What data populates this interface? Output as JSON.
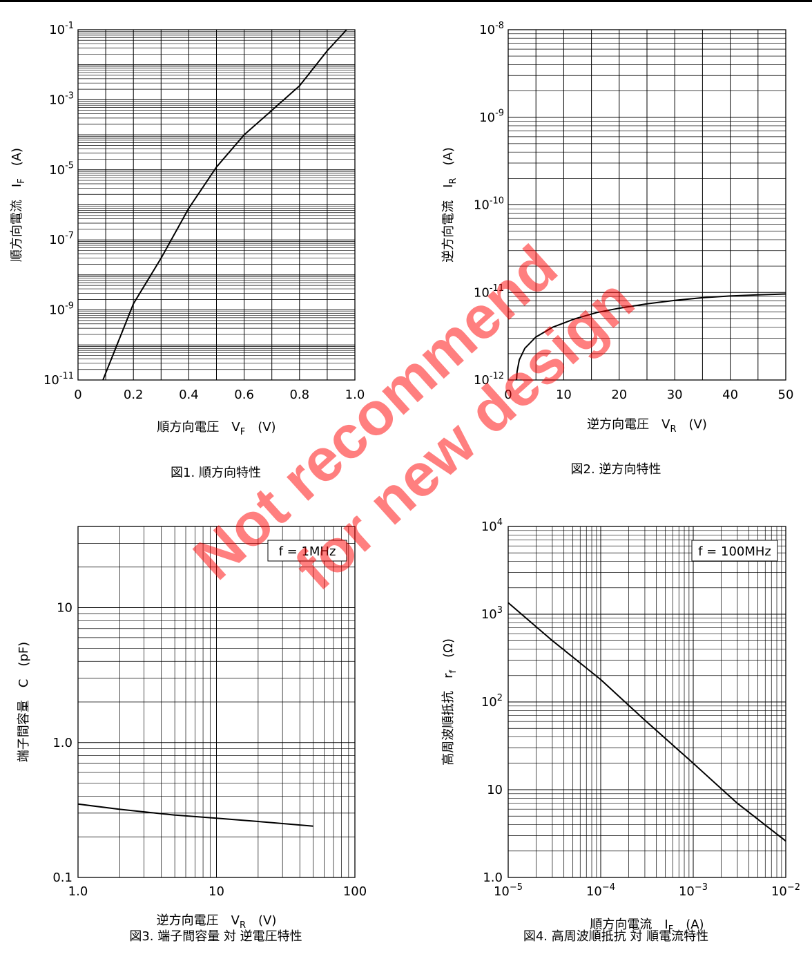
{
  "watermark": {
    "line1": "Not recommend",
    "line2": "for new design",
    "color": "#ff0000"
  },
  "chart_data": [
    {
      "type": "line",
      "caption": "図1. 順方向特性",
      "xlabel": "順方向電圧",
      "xlabel_symbol": "V",
      "xlabel_sub": "F",
      "xlabel_unit": "(V)",
      "ylabel": "順方向電流",
      "ylabel_symbol": "I",
      "ylabel_sub": "F",
      "ylabel_unit": "(A)",
      "x_scale": "linear",
      "y_scale": "log",
      "xlim": [
        0,
        1.0
      ],
      "ylim": [
        1e-11,
        0.1
      ],
      "x_ticks": [
        0,
        0.2,
        0.4,
        0.6,
        0.8,
        1.0
      ],
      "x_tick_labels": [
        "0",
        "0.2",
        "0.4",
        "0.6",
        "0.8",
        "1.0"
      ],
      "y_tick_labels": [
        {
          "value": 1e-11,
          "base": "10",
          "exp": "-11"
        },
        {
          "value": 1e-09,
          "base": "10",
          "exp": "-9"
        },
        {
          "value": 1e-07,
          "base": "10",
          "exp": "-7"
        },
        {
          "value": 1e-05,
          "base": "10",
          "exp": "-5"
        },
        {
          "value": 0.001,
          "base": "10",
          "exp": "-3"
        },
        {
          "value": 0.1,
          "base": "10",
          "exp": "-1"
        }
      ],
      "grid": true,
      "series": [
        {
          "x": [
            0.09,
            0.2,
            0.3,
            0.4,
            0.5,
            0.6,
            0.7,
            0.8,
            0.9,
            0.97
          ],
          "y": [
            1e-11,
            1.5e-09,
            3e-08,
            8e-07,
            1.2e-05,
            0.0001,
            0.0005,
            0.0025,
            0.025,
            0.1
          ]
        }
      ]
    },
    {
      "type": "line",
      "caption": "図2. 逆方向特性",
      "xlabel": "逆方向電圧",
      "xlabel_symbol": "V",
      "xlabel_sub": "R",
      "xlabel_unit": "(V)",
      "ylabel": "逆方向電流",
      "ylabel_symbol": "I",
      "ylabel_sub": "R",
      "ylabel_unit": "(A)",
      "x_scale": "linear",
      "y_scale": "log",
      "xlim": [
        0,
        50
      ],
      "ylim": [
        1e-12,
        1e-08
      ],
      "x_ticks": [
        0,
        10,
        20,
        30,
        40,
        50
      ],
      "x_tick_labels": [
        "0",
        "10",
        "20",
        "30",
        "40",
        "50"
      ],
      "y_tick_labels": [
        {
          "value": 1e-12,
          "base": "10",
          "exp": "-12"
        },
        {
          "value": 1e-11,
          "base": "10",
          "exp": "-11"
        },
        {
          "value": 1e-10,
          "base": "10",
          "exp": "-10"
        },
        {
          "value": 1e-09,
          "base": "10",
          "exp": "-9"
        },
        {
          "value": 1e-08,
          "base": "10",
          "exp": "-8"
        }
      ],
      "grid": true,
      "series": [
        {
          "x": [
            1.5,
            1.6,
            2,
            3,
            5,
            8,
            12,
            16,
            20,
            25,
            30,
            35,
            40,
            45,
            50
          ],
          "y": [
            1e-12,
            1.25e-12,
            1.7e-12,
            2.3e-12,
            3.1e-12,
            4e-12,
            5e-12,
            5.9e-12,
            6.6e-12,
            7.4e-12,
            8.1e-12,
            8.7e-12,
            9.1e-12,
            9.4e-12,
            9.6e-12
          ]
        }
      ]
    },
    {
      "type": "line",
      "caption": "図3. 端子間容量 対 逆電圧特性",
      "annotation": "f = 1MHz",
      "xlabel": "逆方向電圧",
      "xlabel_symbol": "V",
      "xlabel_sub": "R",
      "xlabel_unit": "(V)",
      "ylabel": "端子間容量",
      "ylabel_symbol": "C",
      "ylabel_sub": "",
      "ylabel_unit": "(pF)",
      "x_scale": "log",
      "y_scale": "log",
      "xlim": [
        1,
        100
      ],
      "ylim": [
        0.1,
        40
      ],
      "x_tick_labels": [
        {
          "value": 1,
          "label": "1.0"
        },
        {
          "value": 10,
          "label": "10"
        },
        {
          "value": 100,
          "label": "100"
        }
      ],
      "y_tick_labels": [
        {
          "value": 0.1,
          "label": "0.1"
        },
        {
          "value": 1,
          "label": "1.0"
        },
        {
          "value": 10,
          "label": "10"
        }
      ],
      "grid": true,
      "series": [
        {
          "x": [
            1,
            2,
            5,
            10,
            20,
            50
          ],
          "y": [
            0.35,
            0.32,
            0.29,
            0.275,
            0.26,
            0.24
          ]
        }
      ]
    },
    {
      "type": "line",
      "caption": "図4. 高周波順抵抗 対 順電流特性",
      "annotation": "f = 100MHz",
      "xlabel": "順方向電流",
      "xlabel_symbol": "I",
      "xlabel_sub": "F",
      "xlabel_unit": "(A)",
      "ylabel": "高周波順抵抗",
      "ylabel_symbol": "r",
      "ylabel_sub": "f",
      "ylabel_unit": "(Ω)",
      "x_scale": "log",
      "y_scale": "log",
      "xlim": [
        1e-05,
        0.01
      ],
      "ylim": [
        1,
        10000
      ],
      "x_tick_labels": [
        {
          "value": 1e-05,
          "base": "10",
          "exp": "−5"
        },
        {
          "value": 0.0001,
          "base": "10",
          "exp": "−4"
        },
        {
          "value": 0.001,
          "base": "10",
          "exp": "−3"
        },
        {
          "value": 0.01,
          "base": "10",
          "exp": "−2"
        }
      ],
      "y_tick_labels": [
        {
          "value": 1,
          "label": "1.0"
        },
        {
          "value": 10,
          "label": "10"
        },
        {
          "value": 100,
          "base": "10",
          "exp": "2"
        },
        {
          "value": 1000,
          "base": "10",
          "exp": "3"
        },
        {
          "value": 10000,
          "base": "10",
          "exp": "4"
        }
      ],
      "grid": true,
      "series": [
        {
          "x": [
            1e-05,
            3e-05,
            0.0001,
            0.0003,
            0.001,
            0.003,
            0.01
          ],
          "y": [
            1350,
            500,
            180,
            62,
            20,
            7,
            2.6
          ]
        }
      ]
    }
  ]
}
